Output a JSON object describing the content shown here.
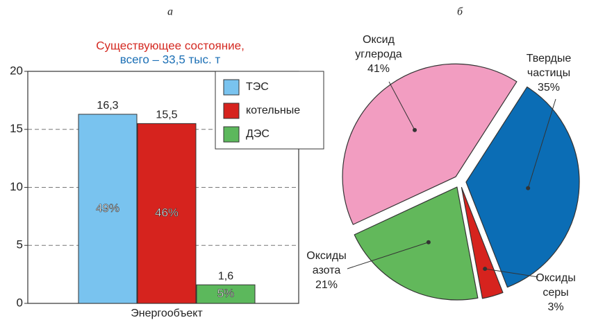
{
  "chart_data": [
    {
      "type": "bar",
      "panel": "а",
      "title": [
        "Существующее состояние,",
        "всего – 33,5 тыс. т"
      ],
      "title_colors": [
        "#d42a22",
        "#1b6fb5"
      ],
      "categories": [
        "Энергообъект"
      ],
      "series": [
        {
          "name": "ТЭС",
          "color": "#79c3ef",
          "values": [
            16.3
          ],
          "value_labels": [
            "16,3"
          ],
          "share_labels": [
            "49%"
          ]
        },
        {
          "name": "котельные",
          "color": "#d6231e",
          "values": [
            15.5
          ],
          "value_labels": [
            "15,5"
          ],
          "share_labels": [
            "46%"
          ]
        },
        {
          "name": "ДЭС",
          "color": "#5cb85c",
          "values": [
            1.6
          ],
          "value_labels": [
            "1,6"
          ],
          "share_labels": [
            "5%"
          ]
        }
      ],
      "ylim": [
        0,
        20
      ],
      "yticks": [
        0,
        5,
        10,
        15,
        20
      ],
      "grid": true,
      "legend": "upper right"
    },
    {
      "type": "pie",
      "panel": "б",
      "categories": [
        "Оксид углерода",
        "Твердые частицы",
        "Оксиды серы",
        "Оксиды азота"
      ],
      "values": [
        41,
        35,
        3,
        21
      ],
      "value_labels": [
        "41%",
        "35%",
        "3%",
        "21%"
      ],
      "colors": [
        "#f29dc1",
        "#0b6db5",
        "#d6231e",
        "#62b85b"
      ]
    }
  ]
}
